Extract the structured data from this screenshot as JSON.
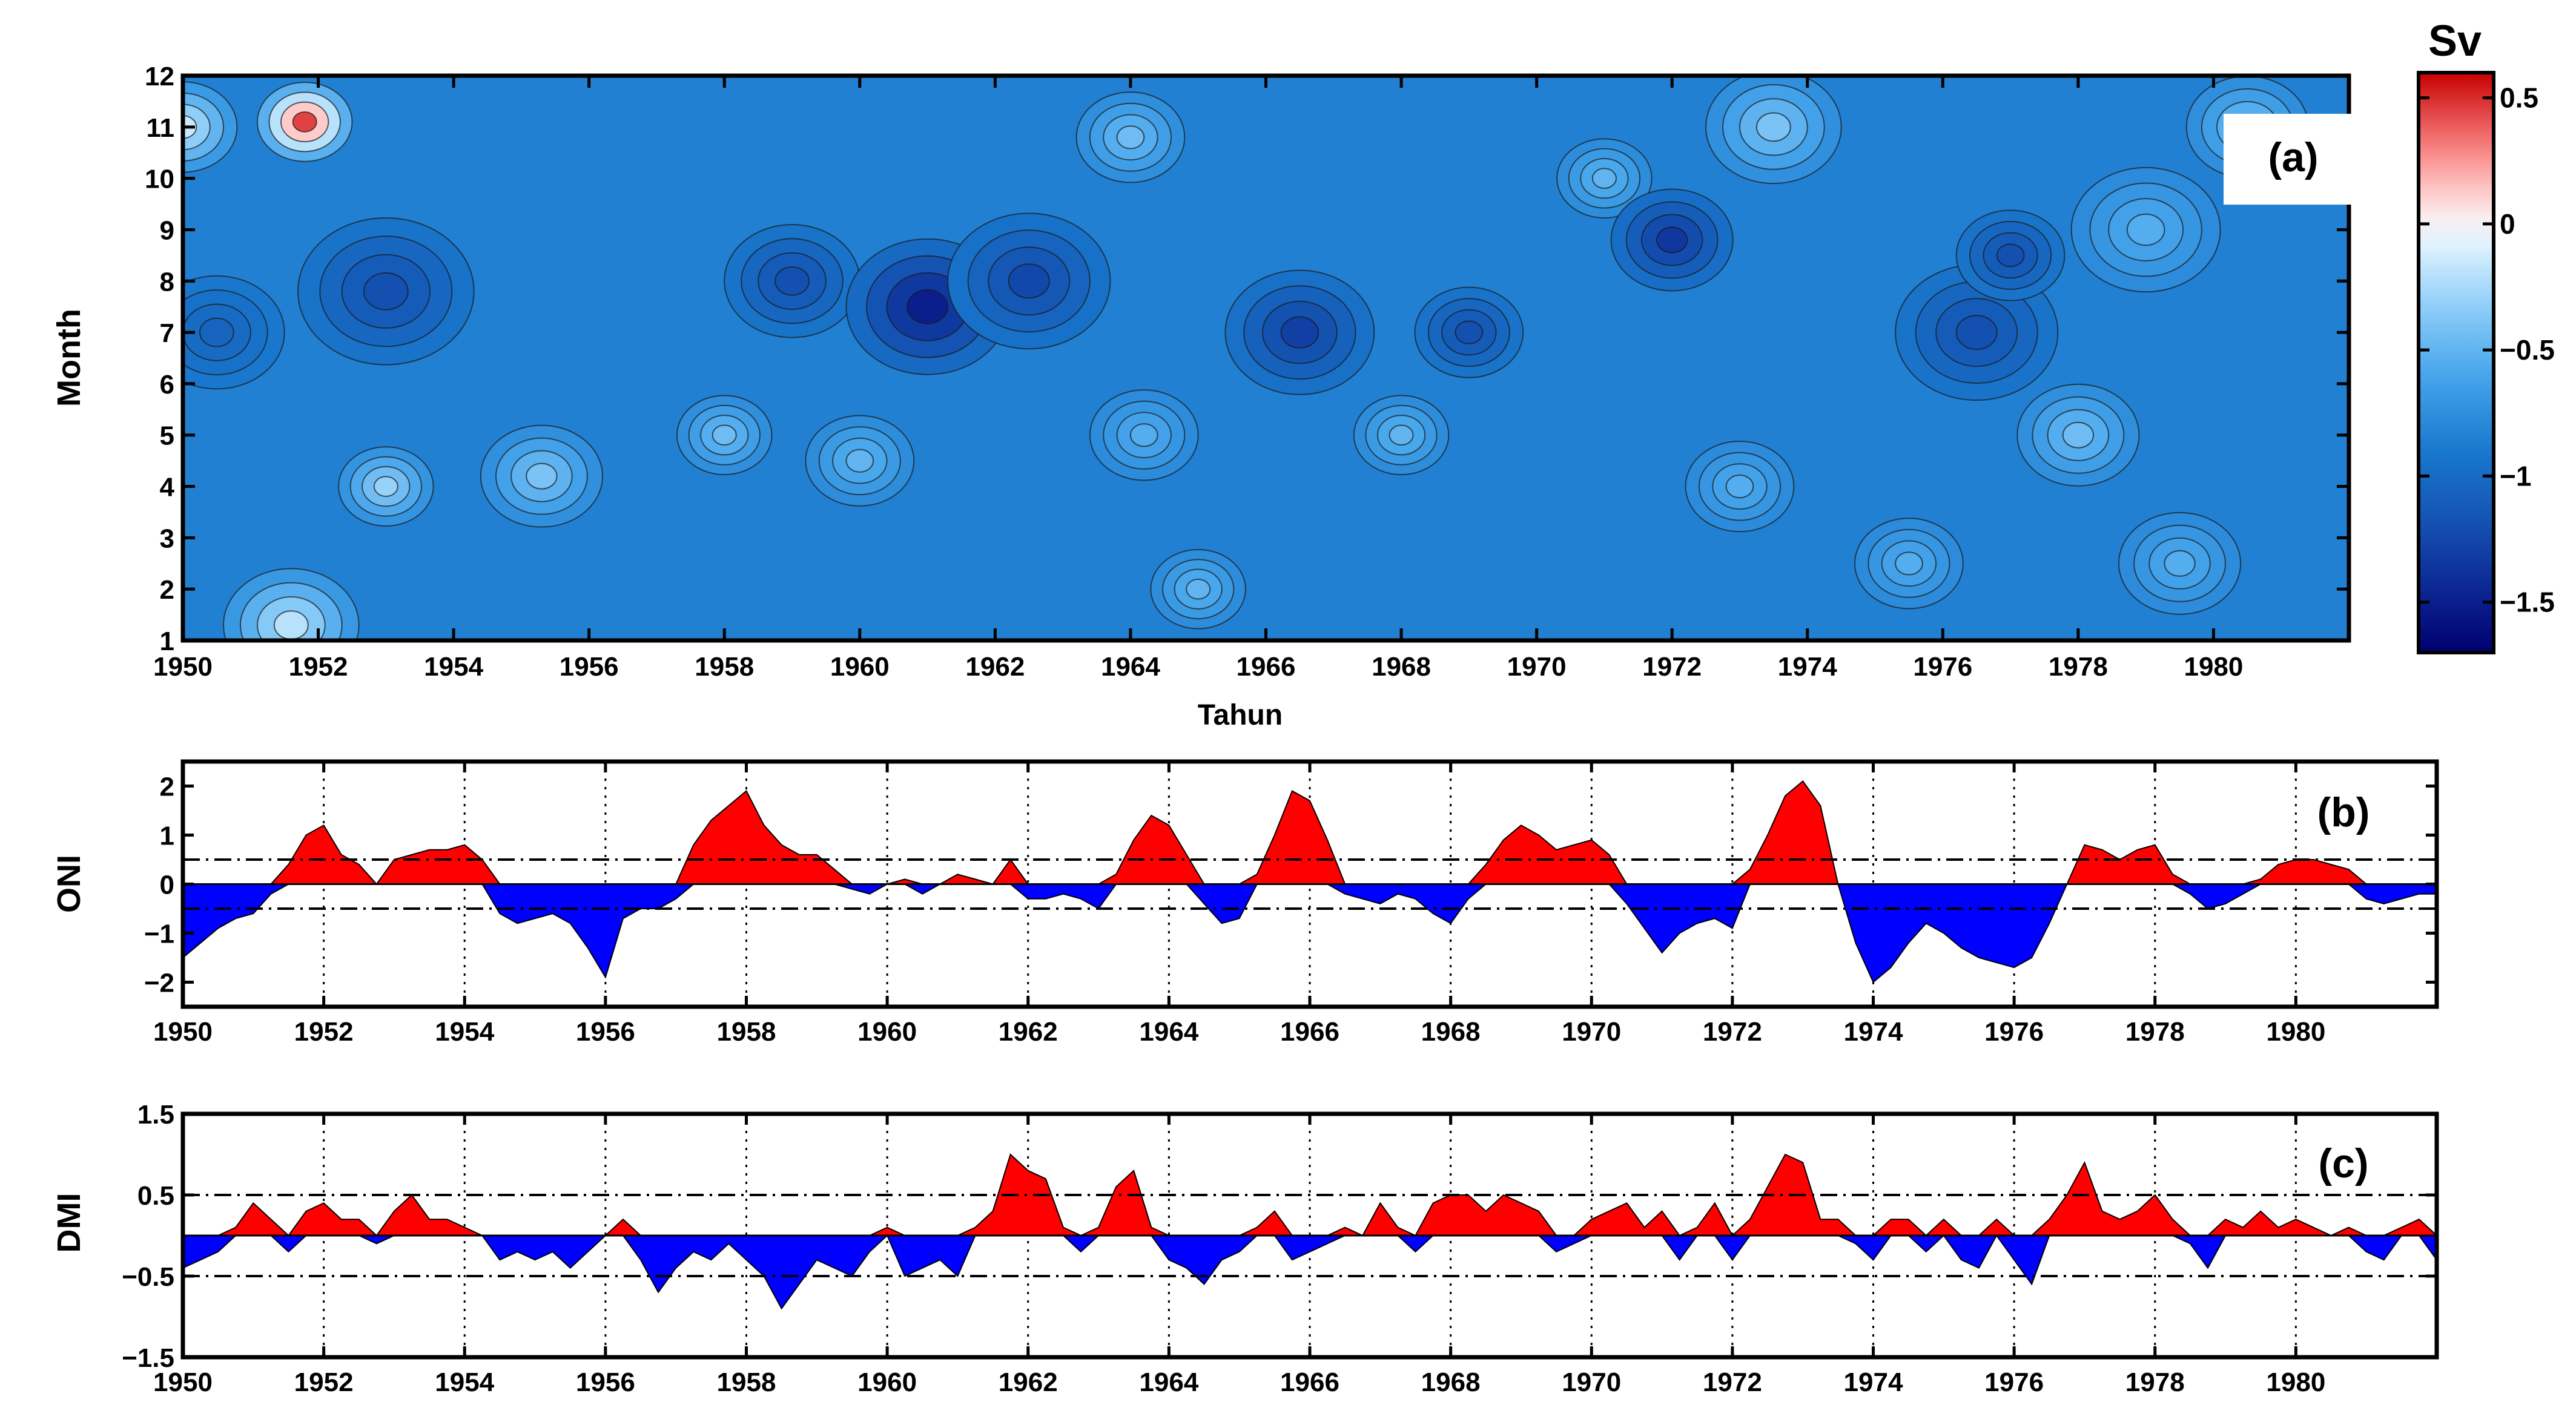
{
  "chart_data": [
    {
      "id": "a",
      "type": "heatmap",
      "panel_label": "(a)",
      "xlabel": "Tahun",
      "ylabel": "Month",
      "xlim": [
        1950,
        1982
      ],
      "ylim": [
        1,
        12
      ],
      "x_ticks": [
        "1950",
        "1952",
        "1954",
        "1956",
        "1958",
        "1960",
        "1962",
        "1964",
        "1966",
        "1968",
        "1970",
        "1972",
        "1974",
        "1976",
        "1978",
        "1980"
      ],
      "y_ticks": [
        "1",
        "2",
        "3",
        "4",
        "5",
        "6",
        "7",
        "8",
        "9",
        "10",
        "11",
        "12"
      ],
      "colorbar": {
        "title": "Sv",
        "range": [
          -1.7,
          0.6
        ],
        "ticks": [
          "0.5",
          "0",
          "−0.5",
          "−1",
          "−1.5"
        ],
        "tick_values": [
          0.5,
          0,
          -0.5,
          -1,
          -1.5
        ]
      },
      "features": [
        {
          "year": 1950.0,
          "month": 11.0,
          "value": -0.15,
          "spread": 0.8
        },
        {
          "year": 1951.8,
          "month": 11.1,
          "value": 0.45,
          "spread": 0.7
        },
        {
          "year": 1951.6,
          "month": 1.3,
          "value": -0.2,
          "spread": 1.0
        },
        {
          "year": 1953.0,
          "month": 4.0,
          "value": -0.3,
          "spread": 0.7
        },
        {
          "year": 1955.3,
          "month": 4.2,
          "value": -0.4,
          "spread": 0.9
        },
        {
          "year": 1953.0,
          "month": 7.8,
          "value": -1.2,
          "spread": 1.3
        },
        {
          "year": 1950.5,
          "month": 7.0,
          "value": -1.05,
          "spread": 1.0
        },
        {
          "year": 1959.0,
          "month": 8.0,
          "value": -1.2,
          "spread": 1.0
        },
        {
          "year": 1961.0,
          "month": 7.5,
          "value": -1.5,
          "spread": 1.2
        },
        {
          "year": 1962.5,
          "month": 8.0,
          "value": -1.25,
          "spread": 1.2
        },
        {
          "year": 1960.0,
          "month": 4.5,
          "value": -0.5,
          "spread": 0.8
        },
        {
          "year": 1958.0,
          "month": 5.0,
          "value": -0.45,
          "spread": 0.7
        },
        {
          "year": 1964.0,
          "month": 10.8,
          "value": -0.45,
          "spread": 0.8
        },
        {
          "year": 1964.2,
          "month": 5.0,
          "value": -0.55,
          "spread": 0.8
        },
        {
          "year": 1965.0,
          "month": 2.0,
          "value": -0.5,
          "spread": 0.7
        },
        {
          "year": 1966.5,
          "month": 7.0,
          "value": -1.3,
          "spread": 1.1
        },
        {
          "year": 1968.0,
          "month": 5.0,
          "value": -0.5,
          "spread": 0.7
        },
        {
          "year": 1969.0,
          "month": 7.0,
          "value": -1.2,
          "spread": 0.8
        },
        {
          "year": 1971.0,
          "month": 10.0,
          "value": -0.5,
          "spread": 0.7
        },
        {
          "year": 1972.0,
          "month": 8.8,
          "value": -1.35,
          "spread": 0.9
        },
        {
          "year": 1973.0,
          "month": 4.0,
          "value": -0.55,
          "spread": 0.8
        },
        {
          "year": 1973.5,
          "month": 11.0,
          "value": -0.4,
          "spread": 1.0
        },
        {
          "year": 1976.5,
          "month": 7.0,
          "value": -1.2,
          "spread": 1.2
        },
        {
          "year": 1977.0,
          "month": 8.5,
          "value": -1.2,
          "spread": 0.8
        },
        {
          "year": 1978.0,
          "month": 5.0,
          "value": -0.45,
          "spread": 0.9
        },
        {
          "year": 1979.0,
          "month": 9.0,
          "value": -0.55,
          "spread": 1.1
        },
        {
          "year": 1979.5,
          "month": 2.5,
          "value": -0.55,
          "spread": 0.9
        },
        {
          "year": 1975.5,
          "month": 2.5,
          "value": -0.55,
          "spread": 0.8
        },
        {
          "year": 1980.5,
          "month": 11.0,
          "value": -0.45,
          "spread": 0.9
        }
      ]
    },
    {
      "id": "b",
      "type": "area",
      "panel_label": "(b)",
      "ylabel": "ONI",
      "xlim": [
        1950,
        1982
      ],
      "ylim": [
        -2.5,
        2.5
      ],
      "thresholds": [
        0.5,
        -0.5
      ],
      "x_ticks": [
        "1950",
        "1952",
        "1954",
        "1956",
        "1958",
        "1960",
        "1962",
        "1964",
        "1966",
        "1968",
        "1970",
        "1972",
        "1974",
        "1976",
        "1978",
        "1980"
      ],
      "y_ticks": [
        "2",
        "1",
        "0",
        "−1",
        "−2"
      ],
      "y_tick_values": [
        2,
        1,
        0,
        -1,
        -2
      ],
      "positive_color": "#ff0000",
      "negative_color": "#0000ff",
      "x": [
        1950.0,
        1950.25,
        1950.5,
        1950.75,
        1951.0,
        1951.25,
        1951.5,
        1951.75,
        1952.0,
        1952.25,
        1952.5,
        1952.75,
        1953.0,
        1953.25,
        1953.5,
        1953.75,
        1954.0,
        1954.25,
        1954.5,
        1954.75,
        1955.0,
        1955.25,
        1955.5,
        1955.75,
        1956.0,
        1956.25,
        1956.5,
        1956.75,
        1957.0,
        1957.25,
        1957.5,
        1957.75,
        1958.0,
        1958.25,
        1958.5,
        1958.75,
        1959.0,
        1959.25,
        1959.5,
        1959.75,
        1960.0,
        1960.25,
        1960.5,
        1960.75,
        1961.0,
        1961.25,
        1961.5,
        1961.75,
        1962.0,
        1962.25,
        1962.5,
        1962.75,
        1963.0,
        1963.25,
        1963.5,
        1963.75,
        1964.0,
        1964.25,
        1964.5,
        1964.75,
        1965.0,
        1965.25,
        1965.5,
        1965.75,
        1966.0,
        1966.25,
        1966.5,
        1966.75,
        1967.0,
        1967.25,
        1967.5,
        1967.75,
        1968.0,
        1968.25,
        1968.5,
        1968.75,
        1969.0,
        1969.25,
        1969.5,
        1969.75,
        1970.0,
        1970.25,
        1970.5,
        1970.75,
        1971.0,
        1971.25,
        1971.5,
        1971.75,
        1972.0,
        1972.25,
        1972.5,
        1972.75,
        1973.0,
        1973.25,
        1973.5,
        1973.75,
        1974.0,
        1974.25,
        1974.5,
        1974.75,
        1975.0,
        1975.25,
        1975.5,
        1975.75,
        1976.0,
        1976.25,
        1976.5,
        1976.75,
        1977.0,
        1977.25,
        1977.5,
        1977.75,
        1978.0,
        1978.25,
        1978.5,
        1978.75,
        1979.0,
        1979.25,
        1979.5,
        1979.75,
        1980.0,
        1980.25,
        1980.5,
        1980.75,
        1981.0,
        1981.25,
        1981.5,
        1981.75,
        1982.0
      ],
      "values": [
        -1.5,
        -1.2,
        -0.9,
        -0.7,
        -0.6,
        -0.2,
        0.4,
        1.0,
        1.2,
        0.6,
        0.4,
        0.0,
        0.5,
        0.6,
        0.7,
        0.7,
        0.8,
        0.5,
        -0.6,
        -0.8,
        -0.7,
        -0.6,
        -0.8,
        -1.3,
        -1.9,
        -0.7,
        -0.5,
        -0.5,
        -0.3,
        0.8,
        1.3,
        1.6,
        1.9,
        1.2,
        0.8,
        0.6,
        0.6,
        0.3,
        -0.1,
        -0.2,
        0.0,
        0.1,
        -0.2,
        0.0,
        0.2,
        0.1,
        0.0,
        0.5,
        -0.3,
        -0.3,
        -0.2,
        -0.3,
        -0.5,
        0.2,
        0.9,
        1.4,
        1.2,
        0.6,
        -0.4,
        -0.8,
        -0.7,
        0.2,
        1.0,
        1.9,
        1.7,
        0.9,
        -0.2,
        -0.3,
        -0.4,
        -0.2,
        -0.3,
        -0.6,
        -0.8,
        -0.3,
        0.4,
        0.9,
        1.2,
        1.0,
        0.7,
        0.8,
        0.9,
        0.6,
        -0.4,
        -0.9,
        -1.4,
        -1.0,
        -0.8,
        -0.7,
        -0.9,
        0.3,
        1.0,
        1.8,
        2.1,
        1.6,
        0.0,
        -1.2,
        -2.0,
        -1.7,
        -1.2,
        -0.8,
        -1.0,
        -1.3,
        -1.5,
        -1.6,
        -1.7,
        -1.5,
        -0.8,
        0.0,
        0.8,
        0.7,
        0.5,
        0.7,
        0.8,
        0.2,
        -0.2,
        -0.5,
        -0.4,
        -0.2,
        0.1,
        0.4,
        0.5,
        0.5,
        0.4,
        0.3,
        -0.3,
        -0.4,
        -0.3,
        -0.2,
        -0.2
      ]
    },
    {
      "id": "c",
      "type": "area",
      "panel_label": "(c)",
      "ylabel": "DMI",
      "xlim": [
        1950,
        1982
      ],
      "ylim": [
        -1.5,
        1.5
      ],
      "thresholds": [
        0.5,
        -0.5
      ],
      "x_ticks": [
        "1950",
        "1952",
        "1954",
        "1956",
        "1958",
        "1960",
        "1962",
        "1964",
        "1966",
        "1968",
        "1970",
        "1972",
        "1974",
        "1976",
        "1978",
        "1980"
      ],
      "y_ticks": [
        "1.5",
        "0.5",
        "−0.5",
        "−1.5"
      ],
      "y_tick_values": [
        1.5,
        0.5,
        -0.5,
        -1.5
      ],
      "positive_color": "#ff0000",
      "negative_color": "#0000ff",
      "x": [
        1950.0,
        1950.25,
        1950.5,
        1950.75,
        1951.0,
        1951.25,
        1951.5,
        1951.75,
        1952.0,
        1952.25,
        1952.5,
        1952.75,
        1953.0,
        1953.25,
        1953.5,
        1953.75,
        1954.0,
        1954.25,
        1954.5,
        1954.75,
        1955.0,
        1955.25,
        1955.5,
        1955.75,
        1956.0,
        1956.25,
        1956.5,
        1956.75,
        1957.0,
        1957.25,
        1957.5,
        1957.75,
        1958.0,
        1958.25,
        1958.5,
        1958.75,
        1959.0,
        1959.25,
        1959.5,
        1959.75,
        1960.0,
        1960.25,
        1960.5,
        1960.75,
        1961.0,
        1961.25,
        1961.5,
        1961.75,
        1962.0,
        1962.25,
        1962.5,
        1962.75,
        1963.0,
        1963.25,
        1963.5,
        1963.75,
        1964.0,
        1964.25,
        1964.5,
        1964.75,
        1965.0,
        1965.25,
        1965.5,
        1965.75,
        1966.0,
        1966.25,
        1966.5,
        1966.75,
        1967.0,
        1967.25,
        1967.5,
        1967.75,
        1968.0,
        1968.25,
        1968.5,
        1968.75,
        1969.0,
        1969.25,
        1969.5,
        1969.75,
        1970.0,
        1970.25,
        1970.5,
        1970.75,
        1971.0,
        1971.25,
        1971.5,
        1971.75,
        1972.0,
        1972.25,
        1972.5,
        1972.75,
        1973.0,
        1973.25,
        1973.5,
        1973.75,
        1974.0,
        1974.25,
        1974.5,
        1974.75,
        1975.0,
        1975.25,
        1975.5,
        1975.75,
        1976.0,
        1976.25,
        1976.5,
        1976.75,
        1977.0,
        1977.25,
        1977.5,
        1977.75,
        1978.0,
        1978.25,
        1978.5,
        1978.75,
        1979.0,
        1979.25,
        1979.5,
        1979.75,
        1980.0,
        1980.25,
        1980.5,
        1980.75,
        1981.0,
        1981.25,
        1981.5,
        1981.75,
        1982.0
      ],
      "values": [
        -0.4,
        -0.3,
        -0.2,
        0.1,
        0.4,
        0.2,
        -0.2,
        0.3,
        0.4,
        0.2,
        0.2,
        -0.1,
        0.3,
        0.5,
        0.2,
        0.2,
        0.1,
        0.0,
        -0.3,
        -0.2,
        -0.3,
        -0.2,
        -0.4,
        -0.2,
        0.0,
        0.2,
        -0.3,
        -0.7,
        -0.4,
        -0.2,
        -0.3,
        -0.1,
        -0.3,
        -0.5,
        -0.9,
        -0.6,
        -0.3,
        -0.4,
        -0.5,
        -0.2,
        0.1,
        -0.5,
        -0.4,
        -0.3,
        -0.5,
        0.1,
        0.3,
        1.0,
        0.8,
        0.7,
        0.1,
        -0.2,
        0.1,
        0.6,
        0.8,
        0.1,
        -0.3,
        -0.4,
        -0.6,
        -0.3,
        -0.2,
        0.1,
        0.3,
        -0.3,
        -0.2,
        -0.1,
        0.1,
        0.0,
        0.4,
        0.1,
        -0.2,
        0.4,
        0.5,
        0.5,
        0.3,
        0.5,
        0.4,
        0.3,
        -0.2,
        -0.1,
        0.2,
        0.3,
        0.4,
        0.1,
        0.3,
        -0.3,
        0.1,
        0.4,
        -0.3,
        0.2,
        0.6,
        1.0,
        0.9,
        0.2,
        0.2,
        -0.1,
        -0.3,
        0.2,
        0.2,
        -0.2,
        0.2,
        -0.3,
        -0.4,
        0.2,
        -0.3,
        -0.6,
        0.2,
        0.5,
        0.9,
        0.3,
        0.2,
        0.3,
        0.5,
        0.2,
        -0.1,
        -0.4,
        0.2,
        0.1,
        0.3,
        0.1,
        0.2,
        0.1,
        0.0,
        0.1,
        -0.2,
        -0.3,
        0.1,
        0.2,
        -0.3
      ]
    }
  ]
}
